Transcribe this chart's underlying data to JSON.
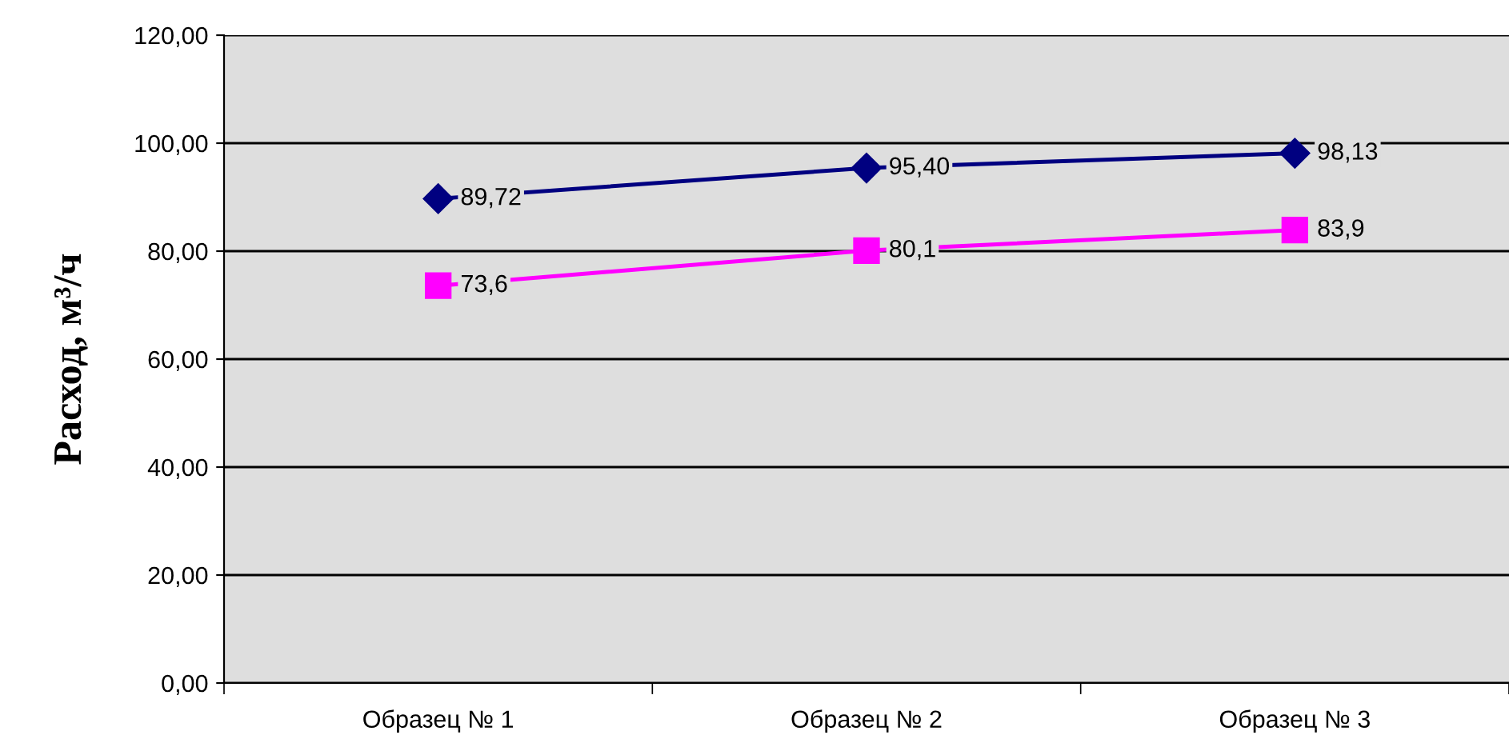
{
  "chart_data": {
    "type": "line",
    "ylabel": "Расход, м³/ч",
    "categories": [
      "Образец № 1",
      "Образец № 2",
      "Образец № 3"
    ],
    "series": [
      {
        "color": "#000080",
        "marker": "diamond",
        "values": [
          89.72,
          95.4,
          98.13
        ],
        "value_labels": [
          "89,72",
          "95,40",
          "98,13"
        ]
      },
      {
        "color": "#ff00ff",
        "marker": "square",
        "values": [
          73.6,
          80.1,
          83.9
        ],
        "value_labels": [
          "73,6",
          "80,1",
          "83,9"
        ]
      }
    ],
    "ylim": [
      0,
      120
    ],
    "yticks": [
      {
        "value": 0,
        "label": "0,00"
      },
      {
        "value": 20,
        "label": "20,00"
      },
      {
        "value": 40,
        "label": "40,00"
      },
      {
        "value": 60,
        "label": "60,00"
      },
      {
        "value": 80,
        "label": "80,00"
      },
      {
        "value": 100,
        "label": "100,00"
      },
      {
        "value": 120,
        "label": "120,00"
      }
    ],
    "grid": "y",
    "legend": false,
    "line_style": "solid"
  }
}
